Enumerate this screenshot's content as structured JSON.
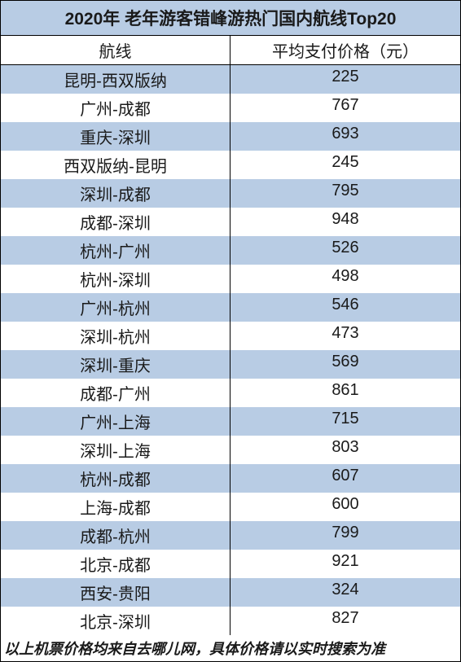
{
  "table": {
    "title": "2020年 老年游客错峰游热门国内航线Top20",
    "columns": [
      "航线",
      "平均支付价格（元）"
    ],
    "rows": [
      [
        "昆明-西双版纳",
        "225"
      ],
      [
        "广州-成都",
        "767"
      ],
      [
        "重庆-深圳",
        "693"
      ],
      [
        "西双版纳-昆明",
        "245"
      ],
      [
        "深圳-成都",
        "795"
      ],
      [
        "成都-深圳",
        "948"
      ],
      [
        "杭州-广州",
        "526"
      ],
      [
        "杭州-深圳",
        "498"
      ],
      [
        "广州-杭州",
        "546"
      ],
      [
        "深圳-杭州",
        "473"
      ],
      [
        "深圳-重庆",
        "569"
      ],
      [
        "成都-广州",
        "861"
      ],
      [
        "广州-上海",
        "715"
      ],
      [
        "深圳-上海",
        "803"
      ],
      [
        "杭州-成都",
        "607"
      ],
      [
        "上海-成都",
        "600"
      ],
      [
        "成都-杭州",
        "799"
      ],
      [
        "北京-成都",
        "921"
      ],
      [
        "西安-贵阳",
        "324"
      ],
      [
        "北京-深圳",
        "827"
      ]
    ],
    "footnote": "以上机票价格均来自去哪儿网，具体价格请以实时搜索为准",
    "colors": {
      "title_bg": "#b8cce4",
      "header_bg": "#ffffff",
      "row_odd_bg": "#b8cce4",
      "row_even_bg": "#ffffff",
      "footnote_bg": "#ffffff",
      "border": "#000000"
    },
    "font_sizes": {
      "title": 21,
      "header": 20,
      "cell": 20,
      "footnote": 18
    },
    "column_widths": [
      "50%",
      "50%"
    ]
  }
}
